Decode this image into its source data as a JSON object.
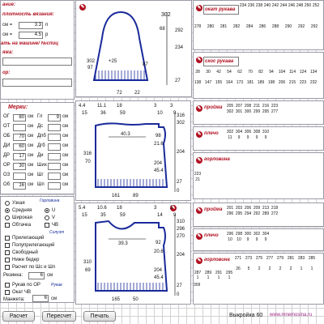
{
  "left": {
    "title_tail": "ание:",
    "density_label": "плотность вязания:",
    "s_eq1": "см =",
    "stitches_per_cm": "3.3",
    "p_unit": "п",
    "s_eq2": "см =",
    "rows_per_cm": "4.5",
    "r_unit": "р",
    "machine_label": "ать на машине/ №спиц",
    "yarn_label": "яжа:",
    "author_label": "ор:"
  },
  "measures": {
    "title": "Мерки:",
    "unit": "см",
    "rows": [
      {
        "a": "ОГ",
        "av": "80",
        "b": "Гл",
        "bv": "9"
      },
      {
        "a": "ОТ",
        "av": "",
        "b": "Дс",
        "bv": ""
      },
      {
        "a": "ОБ",
        "av": "70",
        "b": "Дпб",
        "bv": ""
      },
      {
        "a": "ДИ",
        "av": "60",
        "b": "Дгб",
        "bv": ""
      },
      {
        "a": "ДР",
        "av": "17",
        "b": "Ди",
        "bv": ""
      },
      {
        "a": "ОР",
        "av": "30",
        "b": "Ших",
        "bv": ""
      },
      {
        "a": "ОЗ",
        "av": "",
        "b": "Шг",
        "bv": ""
      },
      {
        "a": "Об",
        "av": "16",
        "b": "Шп",
        "bv": ""
      }
    ]
  },
  "options": {
    "fit_title": "Горловина",
    "narrow": "Узкая",
    "medium": "Средняя",
    "wide": "Широкая",
    "u": "U",
    "v": "V",
    "chv": "ЧВ",
    "silhouette_title": "Силуэт",
    "fitted": "Прилегающий",
    "semi_fitted": "Полуприлегающий",
    "loose": "Свободный",
    "below_hips": "Ниже бедер",
    "calc": "Расчет по Шс и Шп",
    "ribbing_label": "Резинка:",
    "ribbing_val": "6",
    "sleeve_title": "Рукав",
    "sleeve_or": "Рукав по ОР",
    "sleeve_ov": "Окат ЧВ",
    "cuff_label": "Манжета:",
    "cuff_val": "6",
    "cm": "см"
  },
  "buttons": {
    "calc": "Расчет",
    "recalc": "Пересчет",
    "print": "Печать"
  },
  "footer": {
    "pattern": "Выкройка 60",
    "site": "www.mnemosina.ru"
  },
  "sleeve": {
    "top": "302",
    "r1": "292",
    "r2": "234",
    "r3": "68",
    "r4": "27",
    "left_a": "302",
    "left_b": "97",
    "left_c": "+25",
    "left_d": "17",
    "mid": "87",
    "w1": "72",
    "w2": "22",
    "cm": "см",
    "p": "р"
  },
  "tbl_okat": {
    "title": "окат рукава",
    "h": [
      "234",
      "236",
      "238",
      "240",
      "242",
      "244",
      "246",
      "248",
      "250",
      "252"
    ],
    "v": [
      "278",
      "280",
      "281",
      "282",
      "284",
      "286",
      "288",
      "290",
      "292",
      "292"
    ]
  },
  "tbl_skos": {
    "title": "скос рукава",
    "h": [
      "28",
      "30",
      "42",
      "54",
      "62",
      "70",
      "82",
      "94",
      "104",
      "114",
      "124",
      "134"
    ],
    "v": [
      "138",
      "147",
      "155",
      "164",
      "173",
      "181",
      "189",
      "198",
      "206",
      "215",
      "223",
      "232"
    ]
  },
  "back": {
    "dims_top": [
      "4.4",
      "11.1",
      "18",
      "3",
      "3"
    ],
    "dims_top2": [
      "15",
      "36",
      "59",
      "10",
      "9"
    ],
    "rows": [
      "316",
      "302",
      "204",
      "27",
      "0"
    ],
    "h1": "316",
    "h2": "70",
    "neck": "40.3",
    "p98": "98",
    "p21": "21.6",
    "p204": "204",
    "p45": "45.4",
    "w161": "161",
    "w89": "89",
    "w7": "7",
    "cm": "см",
    "r": "р"
  },
  "front": {
    "dims_top": [
      "5.4",
      "10.6",
      "18",
      "3",
      "3"
    ],
    "dims_top2": [
      "15",
      "35",
      "59",
      "14",
      "9"
    ],
    "rows": [
      "310",
      "296",
      "270",
      "204",
      "27",
      "0"
    ],
    "h1": "310",
    "h2": "69",
    "neck": "39.3",
    "p92": "92",
    "p20": "20.6",
    "p204": "204",
    "p45": "45.4",
    "w165": "165",
    "w50": "50",
    "cm": "см",
    "r": "р"
  },
  "proyma1": {
    "title": "пройма",
    "h": [
      "205",
      "207",
      "208",
      "211",
      "216",
      "223"
    ],
    "v": [
      "302",
      "301",
      "300",
      "299",
      "295",
      "277"
    ]
  },
  "plecho1": {
    "title": "плечо",
    "h": [
      "302",
      "304",
      "306",
      "308",
      "310"
    ],
    "v": [
      "11",
      "9",
      "9",
      "9",
      "9"
    ]
  },
  "gorl1": {
    "title": "горловина",
    "h": [
      "223"
    ],
    "v": [
      "21"
    ]
  },
  "proyma2": {
    "title": "пройма",
    "h": [
      "201",
      "203",
      "206",
      "209",
      "213",
      "218"
    ],
    "v": [
      "296",
      "295",
      "294",
      "292",
      "289",
      "272"
    ]
  },
  "plecho2": {
    "title": "плечо",
    "h": [
      "296",
      "298",
      "300",
      "302",
      "304"
    ],
    "v": [
      "10",
      "10",
      "9",
      "9",
      "9"
    ]
  },
  "gorl2": {
    "title": "горловина",
    "h": [
      "271",
      "273",
      "275",
      "277",
      "279",
      "281",
      "283",
      "285"
    ],
    "v": [
      "26",
      "5",
      "2",
      "2",
      "2",
      "2",
      "1",
      "1"
    ],
    "extra_h": [
      "287",
      "289",
      "291",
      "295"
    ],
    "extra_v": [
      "1",
      "1",
      "1",
      "1"
    ],
    "last": "309"
  }
}
